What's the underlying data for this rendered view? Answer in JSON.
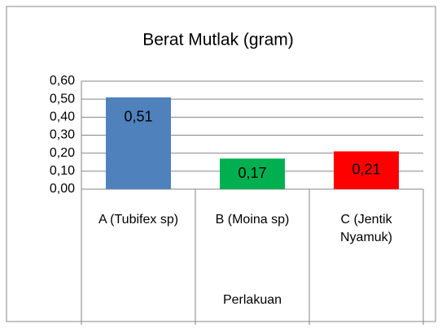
{
  "chart_data": {
    "type": "bar",
    "title": "Berat Mutlak (gram)",
    "categories": [
      "A (Tubifex sp)",
      "B (Moina sp)",
      "C (Jentik Nyamuk)"
    ],
    "values": [
      0.51,
      0.17,
      0.21
    ],
    "value_labels": [
      "0,51",
      "0,17",
      "0,21"
    ],
    "colors": [
      "#4f81bd",
      "#00b050",
      "#ff0000"
    ],
    "x_label": "Perlakuan",
    "ylim": [
      0,
      0.6
    ],
    "yticks": [
      {
        "value": 0,
        "label": "0,00"
      },
      {
        "value": 0.1,
        "label": "0,10"
      },
      {
        "value": 0.2,
        "label": "0,20"
      },
      {
        "value": 0.3,
        "label": "0,30"
      },
      {
        "value": 0.4,
        "label": "0,40"
      },
      {
        "value": 0.5,
        "label": "0,50"
      },
      {
        "value": 0.6,
        "label": "0,60"
      }
    ],
    "grid": true
  }
}
